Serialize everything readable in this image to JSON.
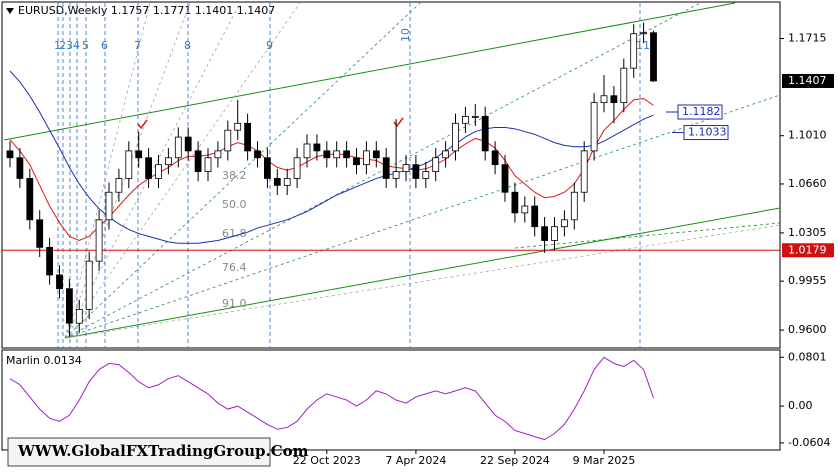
{
  "chart_data": [
    {
      "type": "candlestick",
      "title": "EURUSD,Weekly  1.1757 1.1771 1.1401 1.1407",
      "categories": [
        null,
        null,
        null,
        null,
        null,
        null,
        null,
        null,
        null,
        null,
        null,
        null,
        null,
        null,
        null,
        null,
        null,
        null,
        null,
        null,
        null,
        null,
        null,
        null,
        null,
        null,
        null,
        null,
        null,
        null,
        null,
        null,
        "22 Oct 2023",
        null,
        null,
        null,
        null,
        null,
        null,
        null,
        null,
        "7 Apr 2024",
        null,
        null,
        null,
        null,
        null,
        null,
        null,
        null,
        null,
        "22 Sep 2024",
        null,
        null,
        null,
        null,
        null,
        null,
        null,
        null,
        "9 Mar 2025",
        null,
        null,
        null,
        null,
        null
      ],
      "open": [
        1.09,
        1.085,
        1.07,
        1.04,
        1.02,
        1.0,
        0.99,
        0.965,
        0.975,
        1.01,
        1.04,
        1.06,
        1.07,
        1.09,
        1.085,
        1.07,
        1.08,
        1.085,
        1.1,
        1.09,
        1.075,
        1.085,
        1.09,
        1.105,
        1.11,
        1.09,
        1.085,
        1.07,
        1.065,
        1.07,
        1.085,
        1.095,
        1.09,
        1.085,
        1.09,
        1.085,
        1.08,
        1.09,
        1.085,
        1.07,
        1.075,
        1.08,
        1.07,
        1.075,
        1.085,
        1.09,
        1.11,
        1.115,
        1.115,
        1.09,
        1.08,
        1.06,
        1.045,
        1.05,
        1.035,
        1.025,
        1.035,
        1.04,
        1.06,
        1.09,
        1.125,
        1.13,
        1.125,
        1.15,
        1.175,
        1.1757
      ],
      "high": [
        1.097,
        1.092,
        1.077,
        1.047,
        1.027,
        1.007,
        0.997,
        0.982,
        1.017,
        1.047,
        1.067,
        1.077,
        1.097,
        1.104,
        1.092,
        1.087,
        1.092,
        1.107,
        1.107,
        1.097,
        1.092,
        1.097,
        1.112,
        1.127,
        1.117,
        1.097,
        1.092,
        1.077,
        1.077,
        1.092,
        1.102,
        1.102,
        1.097,
        1.097,
        1.097,
        1.092,
        1.097,
        1.097,
        1.092,
        1.113,
        1.087,
        1.087,
        1.082,
        1.092,
        1.097,
        1.117,
        1.122,
        1.124,
        1.122,
        1.097,
        1.087,
        1.067,
        1.057,
        1.057,
        1.042,
        1.042,
        1.047,
        1.067,
        1.097,
        1.132,
        1.145,
        1.137,
        1.157,
        1.182,
        1.183,
        1.1771
      ],
      "low": [
        1.078,
        1.063,
        1.033,
        1.013,
        0.993,
        0.983,
        0.955,
        0.958,
        0.968,
        1.003,
        1.033,
        1.053,
        1.063,
        1.078,
        1.063,
        1.063,
        1.073,
        1.078,
        1.083,
        1.068,
        1.068,
        1.078,
        1.083,
        1.098,
        1.083,
        1.078,
        1.063,
        1.058,
        1.058,
        1.063,
        1.078,
        1.083,
        1.078,
        1.078,
        1.078,
        1.073,
        1.073,
        1.078,
        1.063,
        1.063,
        1.068,
        1.063,
        1.063,
        1.068,
        1.078,
        1.083,
        1.103,
        1.108,
        1.083,
        1.073,
        1.053,
        1.038,
        1.038,
        1.028,
        1.016,
        1.018,
        1.028,
        1.033,
        1.053,
        1.083,
        1.118,
        1.11,
        1.118,
        1.143,
        1.168,
        1.1401
      ],
      "close": [
        1.085,
        1.07,
        1.04,
        1.02,
        1.0,
        0.99,
        0.965,
        0.975,
        1.01,
        1.04,
        1.06,
        1.07,
        1.09,
        1.085,
        1.07,
        1.08,
        1.085,
        1.1,
        1.09,
        1.075,
        1.085,
        1.09,
        1.105,
        1.11,
        1.09,
        1.085,
        1.07,
        1.065,
        1.07,
        1.085,
        1.095,
        1.09,
        1.085,
        1.09,
        1.085,
        1.08,
        1.09,
        1.085,
        1.07,
        1.075,
        1.08,
        1.07,
        1.075,
        1.085,
        1.09,
        1.11,
        1.115,
        1.115,
        1.09,
        1.08,
        1.06,
        1.045,
        1.05,
        1.035,
        1.025,
        1.035,
        1.04,
        1.06,
        1.09,
        1.125,
        1.13,
        1.125,
        1.15,
        1.175,
        1.1757,
        1.1407
      ],
      "up_color": "#ffffff",
      "down_color": "#000000",
      "wick_color": "#000000",
      "series": [
        {
          "color": "#e01818",
          "values": [
            1.098,
            1.09,
            1.08,
            1.065,
            1.05,
            1.038,
            1.028,
            1.025,
            1.028,
            1.035,
            1.042,
            1.05,
            1.058,
            1.065,
            1.07,
            1.074,
            1.078,
            1.083,
            1.086,
            1.086,
            1.087,
            1.089,
            1.093,
            1.096,
            1.094,
            1.09,
            1.083,
            1.078,
            1.076,
            1.078,
            1.082,
            1.086,
            1.087,
            1.088,
            1.087,
            1.085,
            1.084,
            1.083,
            1.079,
            1.078,
            1.077,
            1.076,
            1.077,
            1.08,
            1.084,
            1.09,
            1.095,
            1.099,
            1.097,
            1.092,
            1.083,
            1.072,
            1.066,
            1.06,
            1.056,
            1.057,
            1.06,
            1.066,
            1.077,
            1.092,
            1.105,
            1.112,
            1.12,
            1.127,
            1.128,
            1.123
          ]
        },
        {
          "color": "#1c2cb4",
          "values": [
            1.148,
            1.14,
            1.13,
            1.118,
            1.105,
            1.092,
            1.078,
            1.066,
            1.056,
            1.048,
            1.042,
            1.037,
            1.033,
            1.03,
            1.028,
            1.026,
            1.024,
            1.023,
            1.023,
            1.023,
            1.024,
            1.025,
            1.027,
            1.029,
            1.031,
            1.034,
            1.036,
            1.038,
            1.04,
            1.043,
            1.046,
            1.05,
            1.054,
            1.058,
            1.061,
            1.064,
            1.067,
            1.07,
            1.072,
            1.074,
            1.076,
            1.078,
            1.081,
            1.085,
            1.09,
            1.095,
            1.1,
            1.104,
            1.106,
            1.107,
            1.107,
            1.106,
            1.104,
            1.102,
            1.099,
            1.096,
            1.094,
            1.093,
            1.093,
            1.094,
            1.097,
            1.101,
            1.105,
            1.109,
            1.113,
            1.116
          ]
        }
      ],
      "levels": [
        {
          "value": 1.0179,
          "color": "#d01010"
        }
      ],
      "line_labels": [
        1.1182,
        1.1033
      ],
      "fib_labels": [
        "38.2",
        "50.0",
        "61.8",
        "76.4",
        "91.0"
      ],
      "time_zones": [
        "1",
        "2",
        "3",
        "4",
        "5",
        "6",
        "7",
        "8",
        "9",
        "10",
        "11"
      ],
      "ylim": [
        0.947,
        1.198
      ],
      "yticks": [
        1.1715,
        {
          "value": 1.101,
          "label": "1.1010"
        },
        {
          "value": 1.066,
          "label": "1.0660"
        },
        1.0305,
        0.9955,
        {
          "value": 0.96,
          "label": "0.9600"
        }
      ]
    },
    {
      "type": "line",
      "title": "Marlin 0.0134",
      "color": "#a020c8",
      "values": [
        0.045,
        0.035,
        0.015,
        -0.005,
        -0.02,
        -0.025,
        -0.015,
        0.01,
        0.04,
        0.06,
        0.07,
        0.068,
        0.055,
        0.04,
        0.03,
        0.035,
        0.045,
        0.05,
        0.04,
        0.03,
        0.02,
        0.005,
        -0.005,
        0.0,
        -0.01,
        -0.02,
        -0.03,
        -0.038,
        -0.035,
        -0.025,
        -0.005,
        0.01,
        0.02,
        0.015,
        0.01,
        0.0,
        0.01,
        0.025,
        0.02,
        0.01,
        0.005,
        0.015,
        0.02,
        0.025,
        0.02,
        0.025,
        0.03,
        0.025,
        0.005,
        -0.015,
        -0.025,
        -0.04,
        -0.045,
        -0.05,
        -0.055,
        -0.045,
        -0.03,
        -0.005,
        0.025,
        0.06,
        0.08,
        0.07,
        0.065,
        0.075,
        0.06,
        0.0134
      ],
      "ylim": [
        -0.072,
        0.092
      ],
      "yticks": [
        0.0801,
        {
          "value": 0,
          "label": "0.00"
        },
        -0.0604
      ]
    }
  ],
  "watermark": "WWW.GlobalFXTradingGroup.Com"
}
